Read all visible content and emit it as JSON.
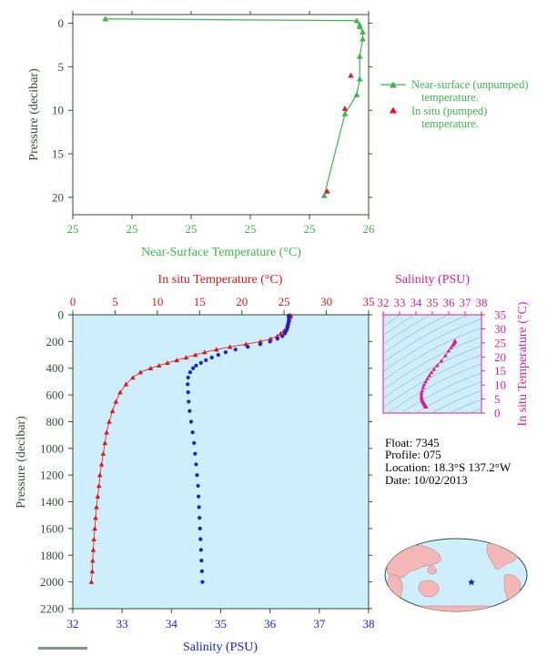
{
  "colors": {
    "green": "#3cb64a",
    "red": "#e0161b",
    "blue": "#1a21c8",
    "magenta": "#e01c8e",
    "axis": "#2f4f2f",
    "panel_bg": "#cdeefa",
    "land": "#f4b7b7"
  },
  "info": {
    "float": "Float:  7345",
    "profile": "Profile:  075",
    "location": "Location:  18.3°S  137.2°W",
    "date": "Date:  10/02/2013"
  },
  "chart_data": [
    {
      "type": "line",
      "xlabel": "Near-Surface Temperature (°C)",
      "ylabel": "Pressure (decibar)",
      "xticks": [
        "25",
        "25",
        "25",
        "25",
        "25",
        "26"
      ],
      "yticks": [
        "0",
        "5",
        "10",
        "15",
        "20"
      ],
      "ylim": [
        0,
        22
      ],
      "legend_position": "right",
      "series": [
        {
          "name": "Near-surface (unpumped) temperature.",
          "x": [
            25.11,
            25.96,
            25.97,
            25.97,
            25.98,
            25.98,
            25.97,
            25.97,
            25.96,
            25.92,
            25.85
          ],
          "y": [
            -0.5,
            -0.3,
            0.2,
            0.4,
            1.0,
            1.8,
            3.8,
            6.4,
            8.2,
            10.4,
            19.8
          ]
        },
        {
          "name": "In situ (pumped) temperature.",
          "x": [
            25.94,
            25.92,
            25.86
          ],
          "y": [
            6.0,
            9.8,
            19.3
          ]
        }
      ]
    },
    {
      "type": "line",
      "title": "In situ Temperature (°C)",
      "xlabel": "Salinity (PSU)",
      "ylabel": "Pressure (decibar)",
      "temp_ticks": [
        "0",
        "5",
        "10",
        "15",
        "20",
        "25",
        "30",
        "35"
      ],
      "sal_ticks": [
        "32",
        "33",
        "34",
        "35",
        "36",
        "37",
        "38"
      ],
      "p_ticks": [
        "0",
        "200",
        "400",
        "600",
        "800",
        "1000",
        "1200",
        "1400",
        "1600",
        "1800",
        "2000",
        "2200"
      ],
      "temp_range": [
        0,
        35
      ],
      "sal_range": [
        32,
        38
      ],
      "p_range": [
        0,
        2200
      ],
      "series": [
        {
          "name": "Temperature",
          "p": [
            5,
            20,
            40,
            60,
            80,
            100,
            120,
            140,
            160,
            180,
            200,
            220,
            240,
            260,
            280,
            300,
            320,
            340,
            360,
            380,
            400,
            430,
            470,
            520,
            580,
            650,
            720,
            800,
            880,
            960,
            1040,
            1120,
            1200,
            1280,
            1360,
            1440,
            1520,
            1600,
            1680,
            1760,
            1840,
            1920,
            2000
          ],
          "v": [
            25.8,
            25.7,
            25.6,
            25.5,
            25.4,
            25.3,
            25.0,
            24.6,
            24.2,
            23.4,
            22.2,
            20.5,
            18.6,
            17.0,
            15.6,
            14.5,
            13.4,
            12.3,
            11.2,
            10.2,
            9.2,
            8.0,
            7.1,
            6.3,
            5.6,
            5.1,
            4.7,
            4.3,
            4.0,
            3.8,
            3.6,
            3.4,
            3.2,
            3.1,
            2.95,
            2.8,
            2.7,
            2.6,
            2.5,
            2.42,
            2.35,
            2.3,
            2.2
          ]
        },
        {
          "name": "Salinity",
          "p": [
            5,
            20,
            40,
            60,
            80,
            100,
            120,
            140,
            160,
            180,
            200,
            220,
            240,
            260,
            280,
            300,
            320,
            340,
            360,
            380,
            400,
            430,
            470,
            520,
            580,
            650,
            720,
            800,
            880,
            960,
            1040,
            1120,
            1200,
            1280,
            1360,
            1440,
            1520,
            1600,
            1680,
            1760,
            1840,
            1920,
            2000
          ],
          "v": [
            36.38,
            36.38,
            36.38,
            36.37,
            36.36,
            36.35,
            36.33,
            36.3,
            36.25,
            36.15,
            36.0,
            35.8,
            35.55,
            35.3,
            35.1,
            34.95,
            34.82,
            34.7,
            34.6,
            34.5,
            34.44,
            34.38,
            34.34,
            34.33,
            34.34,
            34.35,
            34.37,
            34.4,
            34.43,
            34.46,
            34.48,
            34.5,
            34.52,
            34.54,
            34.55,
            34.56,
            34.57,
            34.58,
            34.59,
            34.6,
            34.61,
            34.62,
            34.63
          ]
        }
      ]
    },
    {
      "type": "scatter",
      "xlabel": "Salinity (PSU)",
      "ylabel": "In situ Temperature (°C)",
      "sal_ticks": [
        "32",
        "33",
        "34",
        "35",
        "36",
        "37",
        "38"
      ],
      "temp_ticks": [
        "0",
        "5",
        "10",
        "15",
        "20",
        "25",
        "30",
        "35"
      ]
    }
  ]
}
